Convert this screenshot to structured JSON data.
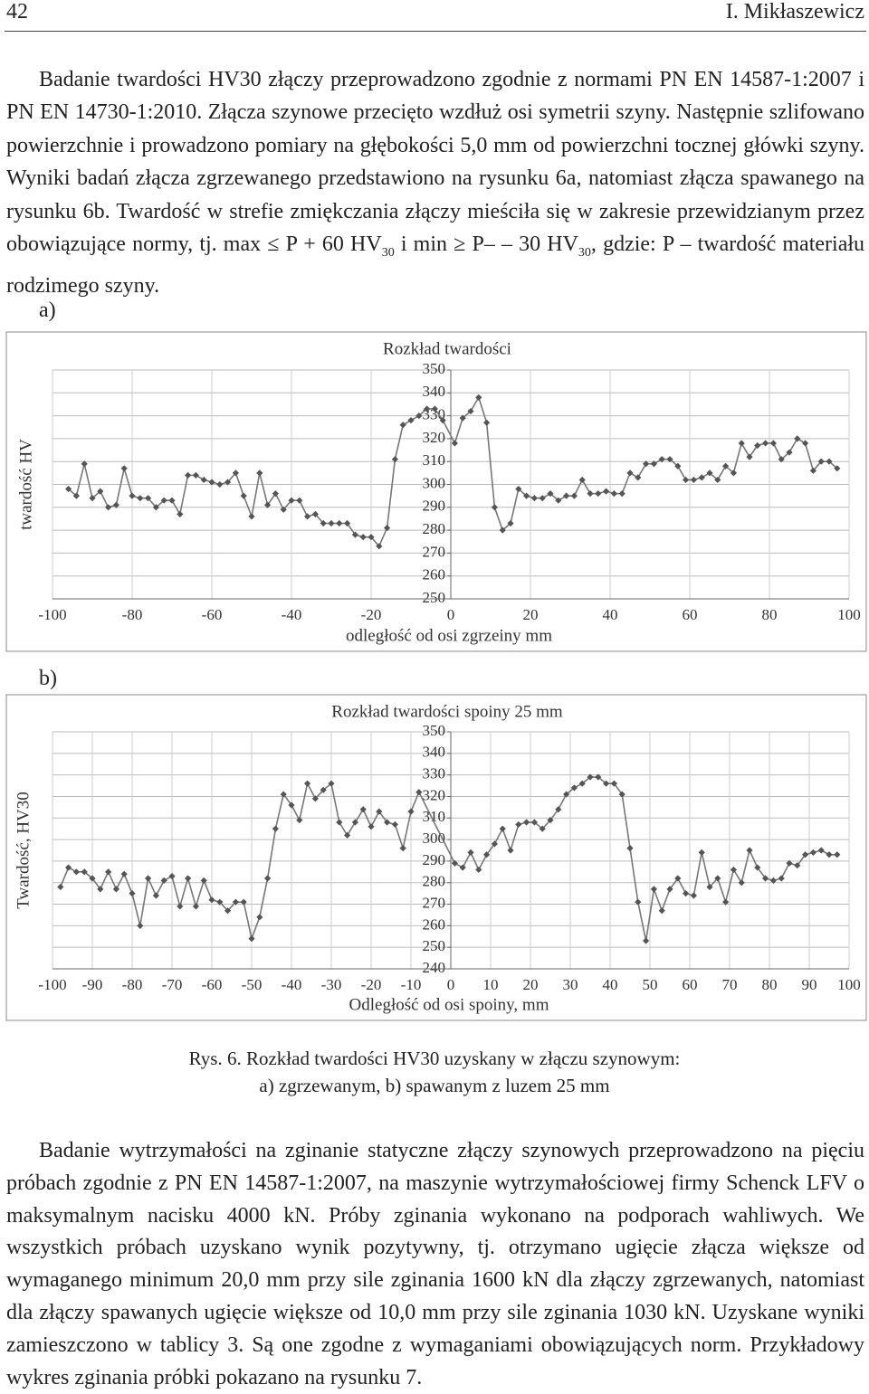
{
  "header": {
    "page_number": "42",
    "author": "I. Mikłaszewicz"
  },
  "paragraph_1": [
    "Badanie twardości HV30 złączy przeprowadzono zgodnie z normami PN EN 14587-1:2007 i PN EN 14730-1:2010. Złącza szynowe przecięto wzdłuż osi symetrii szyny. Następnie szlifowano powierzchnie i prowadzono pomiary na głębokości 5,0 mm od powierzchni tocznej główki szyny. Wyniki badań złącza zgrzewanego przedstawiono na rysunku 6a, natomiast złącza spawanego na rysunku 6b. Twardość w strefie zmiękczania złączy mieściła się w zakresie przewidzianym przez obowiązujące normy, tj. max ≤ P + 60 HV",
    "30",
    " i min ≥ P– – 30 HV",
    "30",
    ", gdzie: P – twardość materiału rodzimego szyny."
  ],
  "panel_labels": [
    "a)",
    "b)"
  ],
  "chart_data": [
    {
      "type": "line",
      "title": "Rozkład twardości",
      "x_label": "odległość od osi zgrzeiny mm",
      "y_label": "twardość HV",
      "color": "#555555",
      "grid": true,
      "xlim": [
        -100,
        100
      ],
      "xticks": [
        -100,
        -80,
        -60,
        -40,
        -20,
        0,
        20,
        40,
        60,
        80,
        100
      ],
      "ylim": [
        250,
        350
      ],
      "yticks": [
        250,
        260,
        270,
        280,
        290,
        300,
        310,
        320,
        330,
        340,
        350
      ],
      "x": [
        -96,
        -94,
        -92,
        -90,
        -88,
        -86,
        -84,
        -82,
        -80,
        -78,
        -76,
        -74,
        -72,
        -70,
        -68,
        -66,
        -64,
        -62,
        -60,
        -58,
        -56,
        -54,
        -52,
        -50,
        -48,
        -46,
        -44,
        -42,
        -40,
        -38,
        -36,
        -34,
        -32,
        -30,
        -28,
        -26,
        -24,
        -22,
        -20,
        -18,
        -16,
        -14,
        -12,
        -10,
        -8,
        -6,
        -4,
        -2,
        1,
        3,
        5,
        7,
        9,
        11,
        13,
        15,
        17,
        19,
        21,
        23,
        25,
        27,
        29,
        31,
        33,
        35,
        37,
        39,
        41,
        43,
        45,
        47,
        49,
        51,
        53,
        55,
        57,
        59,
        61,
        63,
        65,
        67,
        69,
        71,
        73,
        75,
        77,
        79,
        81,
        83,
        85,
        87,
        89,
        91,
        93,
        95,
        97
      ],
      "values": [
        298,
        295,
        309,
        294,
        297,
        290,
        291,
        307,
        295,
        294,
        294,
        290,
        293,
        293,
        287,
        304,
        304,
        302,
        301,
        300,
        301,
        305,
        295,
        286,
        305,
        291,
        296,
        289,
        293,
        293,
        286,
        287,
        283,
        283,
        283,
        283,
        278,
        277,
        277,
        273,
        281,
        311,
        326,
        328,
        330,
        333,
        333,
        328,
        318,
        329,
        332,
        338,
        327,
        290,
        280,
        283,
        298,
        295,
        294,
        294,
        296,
        293,
        295,
        295,
        302,
        296,
        296,
        297,
        296,
        296,
        305,
        303,
        309,
        309,
        311,
        311,
        308,
        302,
        302,
        303,
        305,
        302,
        308,
        305,
        318,
        312,
        317,
        318,
        318,
        311,
        314,
        320,
        318,
        306,
        310,
        310,
        307
      ]
    },
    {
      "type": "line",
      "title": "Rozkład twardości spoiny 25 mm",
      "x_label": "Odległość od osi spoiny, mm",
      "y_label": "Twardość, HV30",
      "color": "#555555",
      "grid": true,
      "xlim": [
        -100,
        100
      ],
      "xticks": [
        -100,
        -90,
        -80,
        -70,
        -60,
        -50,
        -40,
        -30,
        -20,
        -10,
        0,
        10,
        20,
        30,
        40,
        50,
        60,
        70,
        80,
        90,
        100
      ],
      "ylim": [
        240,
        350
      ],
      "yticks": [
        240,
        250,
        260,
        270,
        280,
        290,
        300,
        310,
        320,
        330,
        340,
        350
      ],
      "x": [
        -98,
        -96,
        -94,
        -92,
        -90,
        -88,
        -86,
        -84,
        -82,
        -80,
        -78,
        -76,
        -74,
        -72,
        -70,
        -68,
        -66,
        -64,
        -62,
        -60,
        -58,
        -56,
        -54,
        -52,
        -50,
        -48,
        -46,
        -44,
        -42,
        -40,
        -38,
        -36,
        -34,
        -32,
        -30,
        -28,
        -26,
        -24,
        -22,
        -20,
        -18,
        -16,
        -14,
        -12,
        -10,
        -8,
        1,
        3,
        5,
        7,
        9,
        11,
        13,
        15,
        17,
        19,
        21,
        23,
        25,
        27,
        29,
        31,
        33,
        35,
        37,
        39,
        41,
        43,
        45,
        47,
        49,
        51,
        53,
        55,
        57,
        59,
        61,
        63,
        65,
        67,
        69,
        71,
        73,
        75,
        77,
        79,
        81,
        83,
        85,
        87,
        89,
        91,
        93,
        95,
        97
      ],
      "values": [
        278,
        287,
        285,
        285,
        282,
        277,
        285,
        277,
        284,
        275,
        260,
        282,
        274,
        281,
        283,
        269,
        282,
        269,
        281,
        272,
        271,
        267,
        271,
        271,
        254,
        264,
        282,
        305,
        321,
        316,
        309,
        326,
        319,
        323,
        326,
        308,
        302,
        308,
        314,
        306,
        313,
        308,
        307,
        296,
        313,
        322,
        289,
        287,
        294,
        286,
        293,
        298,
        305,
        295,
        307,
        308,
        308,
        305,
        309,
        314,
        321,
        324,
        326,
        329,
        329,
        326,
        326,
        321,
        296,
        271,
        253,
        277,
        267,
        277,
        282,
        275,
        274,
        294,
        278,
        282,
        271,
        286,
        280,
        295,
        287,
        282,
        281,
        282,
        289,
        288,
        293,
        294,
        295,
        293,
        293
      ]
    }
  ],
  "caption": [
    "Rys. 6. Rozkład twardości HV30 uzyskany w złączu szynowym:",
    "a) zgrzewanym, b) spawanym z luzem 25 mm"
  ],
  "paragraph_2": "Badanie wytrzymałości na zginanie statyczne złączy szynowych przeprowadzono na pięciu próbach zgodnie z PN EN 14587-1:2007, na maszynie wytrzymałościowej firmy Schenck LFV o maksymalnym nacisku 4000 kN. Próby zginania wykonano na podporach wahliwych. We wszystkich próbach uzyskano wynik pozytywny, tj. otrzymano ugięcie złącza większe od wymaganego minimum 20,0 mm przy sile zginania 1600 kN dla złączy zgrzewanych, natomiast dla złączy spawanych ugięcie większe od 10,0 mm przy sile zginania 1030 kN. Uzyskane wyniki zamieszczono w tablicy 3. Są one zgodne z wymaganiami obowiązujących norm. Przykładowy wykres zginania próbki pokazano na rysunku 7."
}
